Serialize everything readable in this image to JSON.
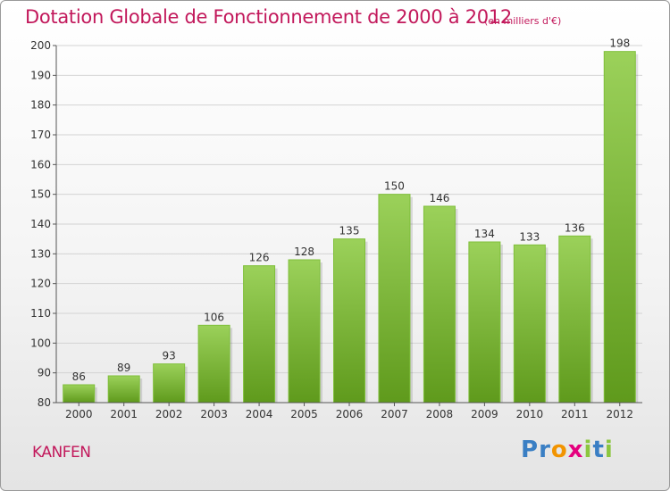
{
  "header": {
    "title": "Dotation Globale de Fonctionnement de 2000 à 2012",
    "subtitle": "(en milliers d'€)"
  },
  "footer": {
    "commune": "KANFEN",
    "logo_text": "Proxiti",
    "logo_colors": [
      "#3a7fc4",
      "#3a7fc4",
      "#f29400",
      "#e5007e",
      "#8cc63f",
      "#3a7fc4",
      "#8cc63f"
    ]
  },
  "colors": {
    "title": "#c2185b",
    "bar_top": "#9bd15a",
    "bar_bottom": "#5f9a1c",
    "grid": "#d3d3d3"
  },
  "chart_data": {
    "type": "bar",
    "title": "Dotation Globale de Fonctionnement de 2000 à 2012",
    "subtitle": "(en milliers d'€)",
    "categories": [
      "2000",
      "2001",
      "2002",
      "2003",
      "2004",
      "2005",
      "2006",
      "2007",
      "2008",
      "2009",
      "2010",
      "2011",
      "2012"
    ],
    "values": [
      86,
      89,
      93,
      106,
      126,
      128,
      135,
      150,
      146,
      134,
      133,
      136,
      198
    ],
    "ylim": [
      80,
      200
    ],
    "yticks": [
      80,
      90,
      100,
      110,
      120,
      130,
      140,
      150,
      160,
      170,
      180,
      190,
      200
    ],
    "grid": true,
    "data_labels": true
  }
}
